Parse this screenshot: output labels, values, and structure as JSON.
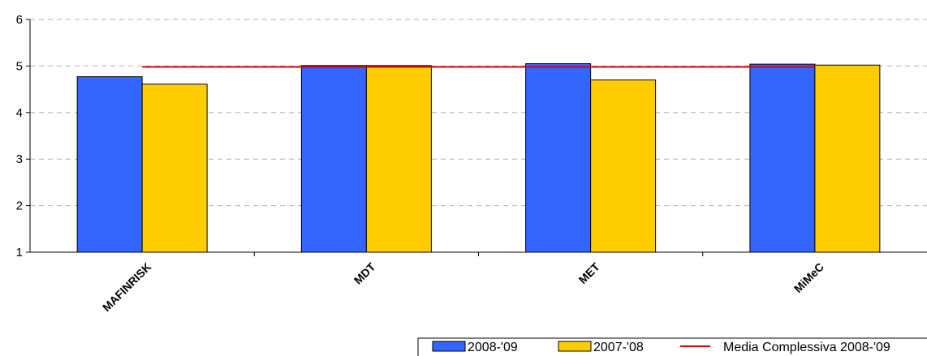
{
  "chart_data": {
    "type": "bar",
    "title": "",
    "xlabel": "",
    "ylabel": "",
    "ylim": [
      1,
      6
    ],
    "yticks": [
      "1",
      "2",
      "3",
      "4",
      "5",
      "6"
    ],
    "grid": "horizontal-dashed",
    "categories": [
      "MAFINRISK",
      "MDT",
      "MET",
      "MiMeC"
    ],
    "series": [
      {
        "name": "2008-'09",
        "color": "#3366FF",
        "values": [
          4.77,
          5.01,
          5.05,
          5.04
        ]
      },
      {
        "name": "2007-'08",
        "color": "#FFCC00",
        "values": [
          4.61,
          5.01,
          4.7,
          5.02
        ]
      }
    ],
    "reference_line": {
      "name": "Media Complessiva 2008-'09",
      "color": "#DD0000",
      "value": 4.98
    },
    "legend": {
      "placement": "bottom-right",
      "entries": [
        "2008-'09",
        "2007-'08",
        "Media Complessiva 2008-'09"
      ]
    }
  }
}
